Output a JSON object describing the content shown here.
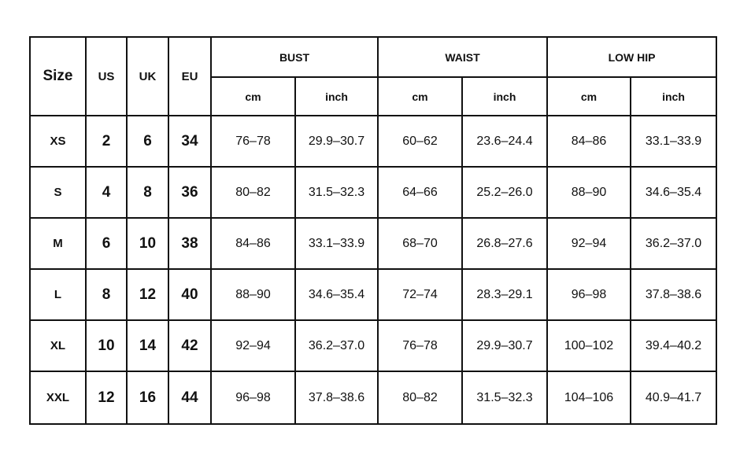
{
  "headers": {
    "size": "Size",
    "us": "US",
    "uk": "UK",
    "eu": "EU",
    "groups": [
      "BUST",
      "WAIST",
      "LOW HIP"
    ],
    "units": [
      "cm",
      "inch",
      "cm",
      "inch",
      "cm",
      "inch"
    ]
  },
  "rows": [
    [
      "XS",
      "2",
      "6",
      "34",
      "76–78",
      "29.9–30.7",
      "60–62",
      "23.6–24.4",
      "84–86",
      "33.1–33.9"
    ],
    [
      "S",
      "4",
      "8",
      "36",
      "80–82",
      "31.5–32.3",
      "64–66",
      "25.2–26.0",
      "88–90",
      "34.6–35.4"
    ],
    [
      "M",
      "6",
      "10",
      "38",
      "84–86",
      "33.1–33.9",
      "68–70",
      "26.8–27.6",
      "92–94",
      "36.2–37.0"
    ],
    [
      "L",
      "8",
      "12",
      "40",
      "88–90",
      "34.6–35.4",
      "72–74",
      "28.3–29.1",
      "96–98",
      "37.8–38.6"
    ],
    [
      "XL",
      "10",
      "14",
      "42",
      "92–94",
      "36.2–37.0",
      "76–78",
      "29.9–30.7",
      "100–102",
      "39.4–40.2"
    ],
    [
      "XXL",
      "12",
      "16",
      "44",
      "96–98",
      "37.8–38.6",
      "80–82",
      "31.5–32.3",
      "104–106",
      "40.9–41.7"
    ]
  ]
}
